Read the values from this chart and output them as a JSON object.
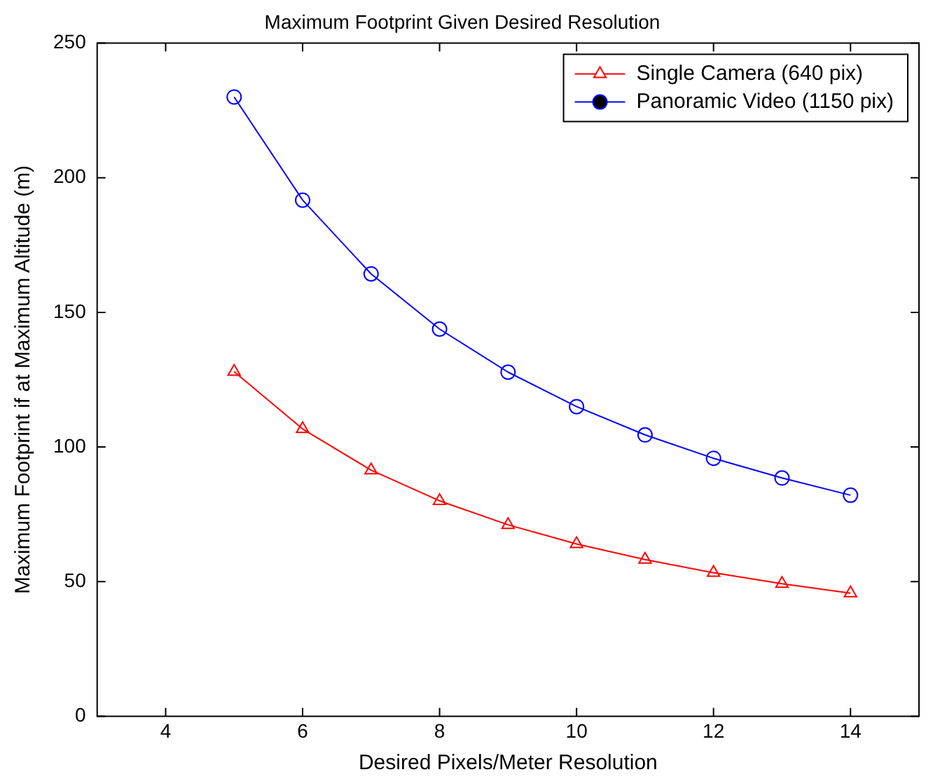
{
  "chart_data": {
    "type": "line",
    "title": "Maximum Footprint Given Desired Resolution",
    "xlabel": "Desired Pixels/Meter Resolution",
    "ylabel": "Maximum Footprint if at Maximum Altitude (m)",
    "x": [
      5,
      6,
      7,
      8,
      9,
      10,
      11,
      12,
      13,
      14
    ],
    "series": [
      {
        "name": "Single Camera (640 pix)",
        "color": "#ff0000",
        "marker": "triangle",
        "values": [
          128,
          106.7,
          91.4,
          80,
          71.1,
          64,
          58.2,
          53.3,
          49.2,
          45.7
        ]
      },
      {
        "name": "Panoramic Video (1150 pix)",
        "color": "#0000ff",
        "marker": "circle",
        "values": [
          230,
          191.7,
          164.3,
          143.8,
          127.8,
          115,
          104.5,
          95.8,
          88.5,
          82.1
        ]
      }
    ],
    "xlim": [
      3,
      15
    ],
    "xticks": [
      4,
      6,
      8,
      10,
      12,
      14
    ],
    "ylim": [
      0,
      250
    ],
    "yticks": [
      0,
      50,
      100,
      150,
      200,
      250
    ],
    "grid": false,
    "legend": "top right",
    "line_style": "solid"
  }
}
